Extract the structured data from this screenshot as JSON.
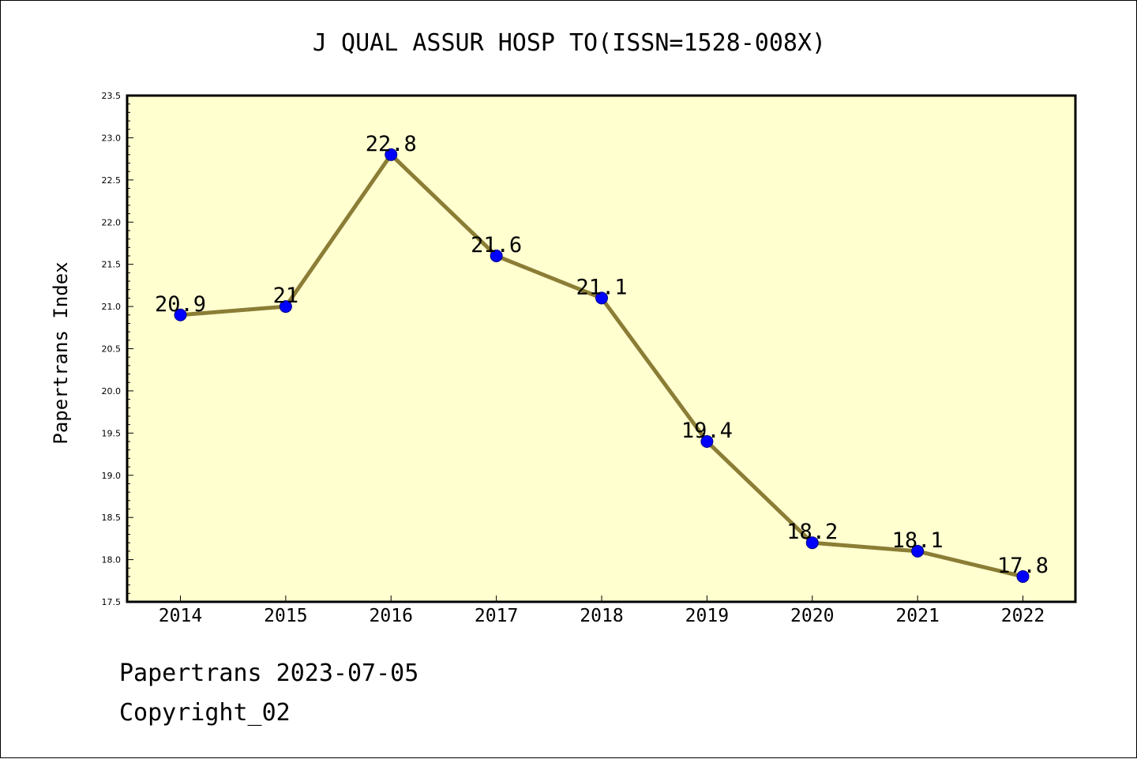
{
  "chart_data": {
    "type": "line",
    "title": "J QUAL ASSUR HOSP TO(ISSN=1528-008X)",
    "xlabel": "",
    "ylabel": "Papertrans Index",
    "categories": [
      "2014",
      "2015",
      "2016",
      "2017",
      "2018",
      "2019",
      "2020",
      "2021",
      "2022"
    ],
    "values": [
      20.9,
      21,
      22.8,
      21.6,
      21.1,
      19.4,
      18.2,
      18.1,
      17.8
    ],
    "data_labels": [
      "20.9",
      "21",
      "22.8",
      "21.6",
      "21.1",
      "19.4",
      "18.2",
      "18.1",
      "17.8"
    ],
    "ylim": [
      17.5,
      23.5
    ],
    "yticks": [
      "17.5",
      "18.0",
      "18.5",
      "19.0",
      "19.5",
      "20.0",
      "20.5",
      "21.0",
      "21.5",
      "22.0",
      "22.5",
      "23.0",
      "23.5"
    ],
    "grid": false,
    "colors": {
      "plot_background": "#FFFFD0",
      "line": "#8B7D35",
      "marker": "#0000FF",
      "axes": "#000000"
    }
  },
  "footer": {
    "line1": "Papertrans 2023-07-05",
    "line2": "Copyright_02"
  }
}
